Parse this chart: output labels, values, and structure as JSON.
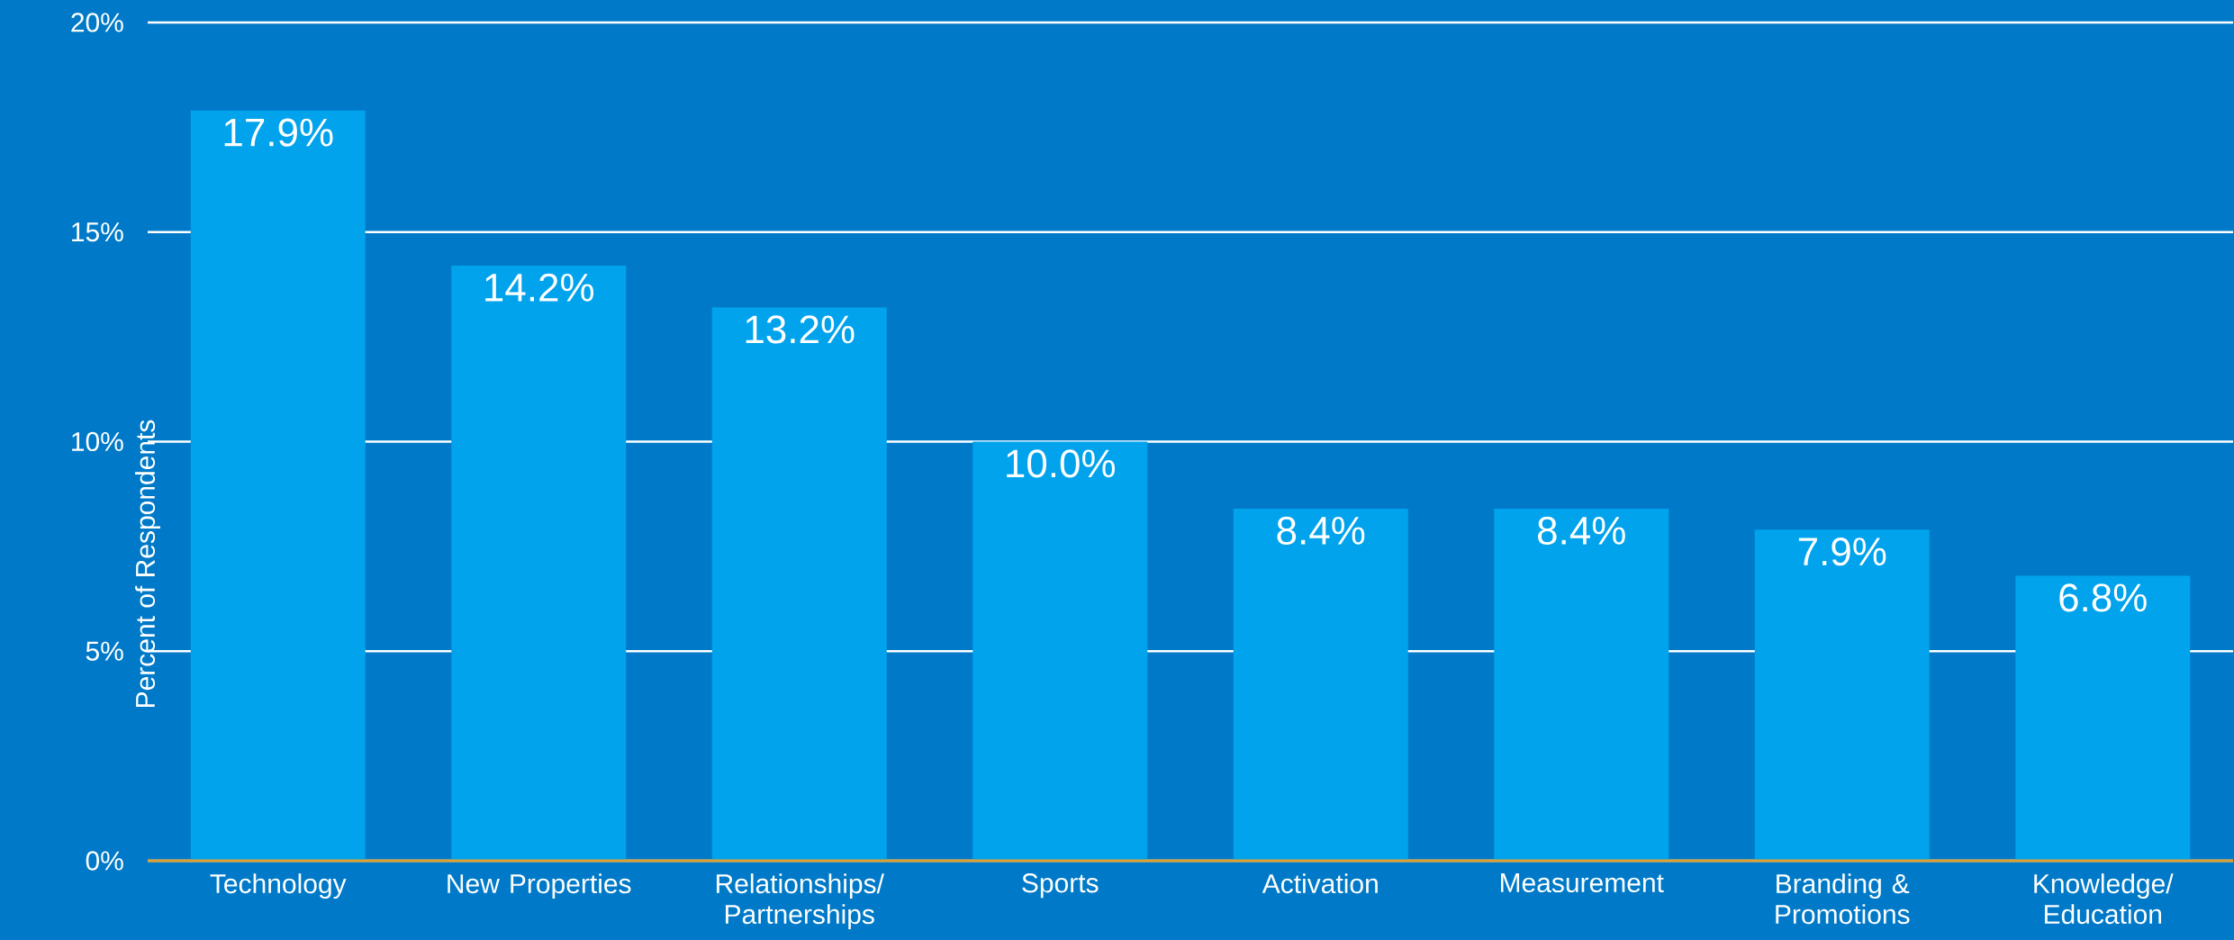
{
  "chart_data": {
    "type": "bar",
    "ylabel": "Percent of Respondents",
    "categories": [
      "Technology",
      "New Properties",
      "Relationships/ Partnerships",
      "Sports",
      "Activation",
      "Measurement",
      "Branding & Promotions",
      "Knowledge/ Education"
    ],
    "values": [
      17.9,
      14.2,
      13.2,
      10.0,
      8.4,
      8.4,
      7.9,
      6.8
    ],
    "value_labels": [
      "17.9%",
      "14.2%",
      "13.2%",
      "10.0%",
      "8.4%",
      "8.4%",
      "7.9%",
      "6.8%"
    ],
    "color": "#00a3ec",
    "ylim": [
      0,
      20
    ],
    "yticks": [
      {
        "value": 0,
        "label": "0%"
      },
      {
        "value": 5,
        "label": "5%"
      },
      {
        "value": 10,
        "label": "10%"
      },
      {
        "value": 15,
        "label": "15%"
      },
      {
        "value": 20,
        "label": "20%"
      }
    ],
    "grid": "y"
  }
}
